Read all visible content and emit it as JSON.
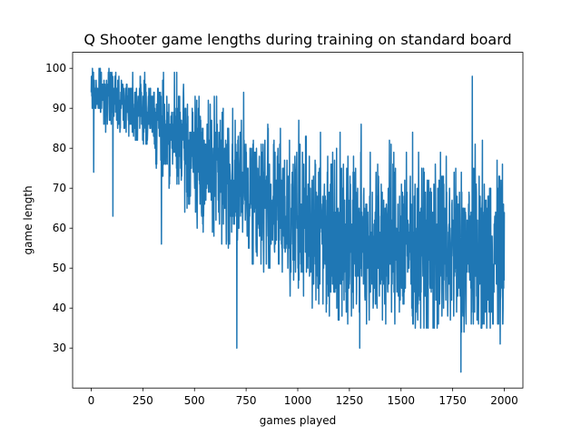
{
  "chart_data": {
    "type": "line",
    "title": "Q Shooter game lengths during training on standard board",
    "xlabel": "games played",
    "ylabel": "game length",
    "xlim": [
      -90,
      2090
    ],
    "ylim": [
      20,
      104
    ],
    "xticks": [
      0,
      250,
      500,
      750,
      1000,
      1250,
      1500,
      1750,
      2000
    ],
    "yticks": [
      30,
      40,
      50,
      60,
      70,
      80,
      90,
      100
    ],
    "grid": false,
    "legend": "none",
    "series_color": "#1f77b4",
    "n_games": 2001,
    "trend_envelope": [
      {
        "x": 0,
        "low": 86,
        "high": 100,
        "mean": 94
      },
      {
        "x": 250,
        "low": 80,
        "high": 100,
        "mean": 90
      },
      {
        "x": 500,
        "low": 60,
        "high": 98,
        "mean": 78
      },
      {
        "x": 750,
        "low": 52,
        "high": 94,
        "mean": 70
      },
      {
        "x": 1000,
        "low": 42,
        "high": 90,
        "mean": 62
      },
      {
        "x": 1250,
        "low": 36,
        "high": 88,
        "mean": 58
      },
      {
        "x": 1500,
        "low": 36,
        "high": 88,
        "mean": 56
      },
      {
        "x": 1750,
        "low": 34,
        "high": 86,
        "mean": 54
      },
      {
        "x": 2000,
        "low": 36,
        "high": 86,
        "mean": 54
      }
    ],
    "notable_points": [
      {
        "x": 12,
        "y": 74
      },
      {
        "x": 105,
        "y": 63
      },
      {
        "x": 340,
        "y": 56
      },
      {
        "x": 705,
        "y": 30
      },
      {
        "x": 1300,
        "y": 30
      },
      {
        "x": 1790,
        "y": 24
      },
      {
        "x": 1845,
        "y": 98
      },
      {
        "x": 1980,
        "y": 31
      }
    ]
  }
}
